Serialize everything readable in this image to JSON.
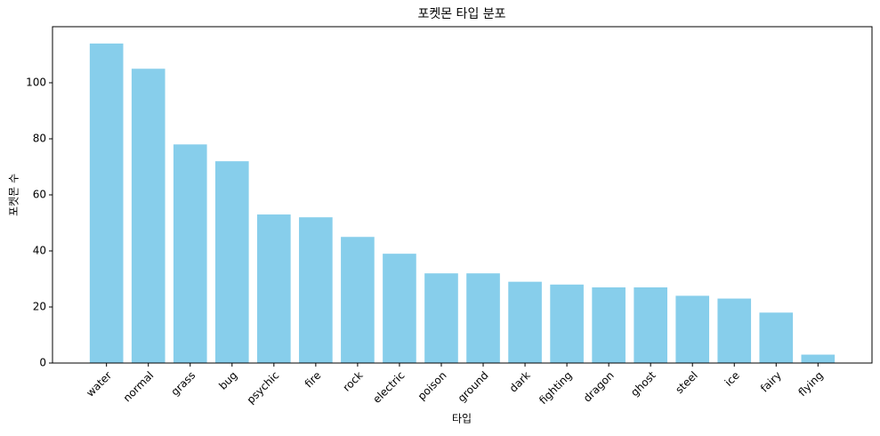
{
  "chart_data": {
    "type": "bar",
    "title": "포켓몬 타입 분포",
    "x_label": "타입",
    "y_label": "포켓몬 수",
    "categories": [
      "water",
      "normal",
      "grass",
      "bug",
      "psychic",
      "fire",
      "rock",
      "electric",
      "poison",
      "ground",
      "dark",
      "fighting",
      "dragon",
      "ghost",
      "steel",
      "ice",
      "fairy",
      "flying"
    ],
    "values": [
      114,
      105,
      78,
      72,
      53,
      52,
      45,
      39,
      32,
      32,
      29,
      28,
      27,
      27,
      24,
      23,
      18,
      3
    ],
    "color": "#87ceeb",
    "ylim": [
      0,
      120
    ],
    "yticks": [
      0,
      20,
      40,
      60,
      80,
      100
    ],
    "grid": false
  }
}
